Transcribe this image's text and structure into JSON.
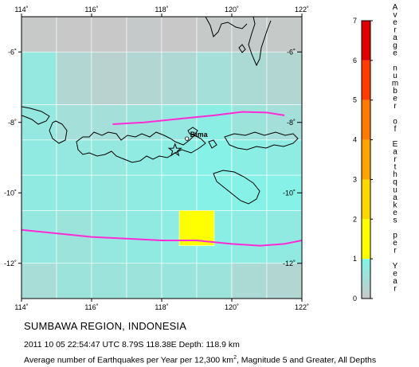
{
  "map": {
    "lon_range": [
      114,
      122
    ],
    "lat_range": [
      -13,
      -5
    ],
    "lon_ticks": [
      {
        "value": 114,
        "label": "114˚"
      },
      {
        "value": 116,
        "label": "116˚"
      },
      {
        "value": 118,
        "label": "118˚"
      },
      {
        "value": 120,
        "label": "120˚"
      },
      {
        "value": 122,
        "label": "122˚"
      }
    ],
    "lat_ticks": [
      {
        "value": -6,
        "label": "-6˚"
      },
      {
        "value": -8,
        "label": "-8˚"
      },
      {
        "value": -10,
        "label": "-10˚"
      },
      {
        "value": -12,
        "label": "-12˚"
      }
    ],
    "grid_cell_size_deg": 1,
    "grid_origin": [
      114,
      -13
    ],
    "rate_grid_rows_north_to_south": [
      [
        0.02,
        0.0,
        0.0,
        0.03,
        0.0,
        0.04,
        0.05,
        0.04
      ],
      [
        0.7,
        0.3,
        0.2,
        0.3,
        0.35,
        0.5,
        0.4,
        0.3
      ],
      [
        0.7,
        0.5,
        0.5,
        0.6,
        0.7,
        0.85,
        0.6,
        0.5
      ],
      [
        0.75,
        0.7,
        0.7,
        0.8,
        0.85,
        0.9,
        0.85,
        0.8
      ],
      [
        0.75,
        0.75,
        0.7,
        0.8,
        0.85,
        0.9,
        0.9,
        0.9
      ],
      [
        0.7,
        0.6,
        0.7,
        0.75,
        0.8,
        0.85,
        0.8,
        0.75
      ],
      [
        0.6,
        0.5,
        0.5,
        0.7,
        2.3,
        0.75,
        0.55,
        0.3
      ],
      [
        0.45,
        0.6,
        0.6,
        0.6,
        0.65,
        0.6,
        0.4,
        0.3
      ],
      [
        0.04,
        0.05,
        0.08,
        0.05,
        0.1,
        0.05,
        0.05,
        0.05
      ]
    ],
    "rate_grid_row_tops_lat": [
      -5,
      -6,
      -7.5,
      -8.5,
      -9.5,
      -10.5,
      -10.5,
      -12,
      -13
    ],
    "colors": {
      "gray": "#c8c8c8",
      "cyan": "#7ff5e9",
      "yellow": "#ffff00",
      "coast": "#000000",
      "plate_boundary": "#ff2bd6",
      "grid_line": "#ffffff"
    },
    "plate_boundaries": [
      {
        "points": [
          [
            116.6,
            -8.05
          ],
          [
            117.5,
            -8.0
          ],
          [
            118.5,
            -7.9
          ],
          [
            119.5,
            -7.8
          ],
          [
            120.3,
            -7.7
          ],
          [
            121.0,
            -7.72
          ],
          [
            121.5,
            -7.8
          ]
        ]
      },
      {
        "points": [
          [
            114.0,
            -11.05
          ],
          [
            115.0,
            -11.15
          ],
          [
            116.0,
            -11.25
          ],
          [
            117.0,
            -11.3
          ],
          [
            118.0,
            -11.35
          ],
          [
            119.0,
            -11.35
          ],
          [
            120.0,
            -11.45
          ],
          [
            120.8,
            -11.5
          ],
          [
            121.5,
            -11.45
          ],
          [
            122.0,
            -11.35
          ]
        ]
      }
    ],
    "epicenter": {
      "lon": 118.38,
      "lat": -8.79
    },
    "cities": [
      {
        "name": "Bima",
        "lon": 118.72,
        "lat": -8.46
      }
    ]
  },
  "colorbar": {
    "title": "Average number of Earthquakes per Year",
    "title_chars": [
      "A",
      "v",
      "e",
      "r",
      "a",
      "g",
      "e",
      "",
      "n",
      "u",
      "m",
      "b",
      "e",
      "r",
      "",
      "o",
      "f",
      "",
      "E",
      "a",
      "r",
      "t",
      "h",
      "q",
      "u",
      "a",
      "k",
      "e",
      "s",
      "",
      "p",
      "e",
      "r",
      "",
      "Y",
      "e",
      "a",
      "r"
    ],
    "ticks": [
      "0",
      "1",
      "2",
      "3",
      "4",
      "5",
      "6",
      "7"
    ],
    "segments": [
      {
        "from": 0,
        "to": 1,
        "gradient": [
          "#c8c8c8",
          "#7ff5e9"
        ]
      },
      {
        "from": 1,
        "to": 2,
        "color": "#ffff00"
      },
      {
        "from": 2,
        "to": 3,
        "color": "#ffd700"
      },
      {
        "from": 3,
        "to": 4,
        "color": "#ffa500"
      },
      {
        "from": 4,
        "to": 5,
        "color": "#ff7a00"
      },
      {
        "from": 5,
        "to": 6,
        "color": "#ff3c00"
      },
      {
        "from": 6,
        "to": 7,
        "color": "#e00000"
      },
      {
        "from": 7,
        "to": 7.0,
        "color": "#a00000"
      }
    ]
  },
  "captions": {
    "region": "SUMBAWA REGION, INDONESIA",
    "event": "2011 10 05 22:54:47 UTC 8.79S 118.38E Depth: 118.9 km",
    "rate_prefix": "Average number of Earthquakes per Year per 12,300 km",
    "rate_sup": "2",
    "rate_suffix": ", Magnitude 5 and Greater, All Depths"
  }
}
